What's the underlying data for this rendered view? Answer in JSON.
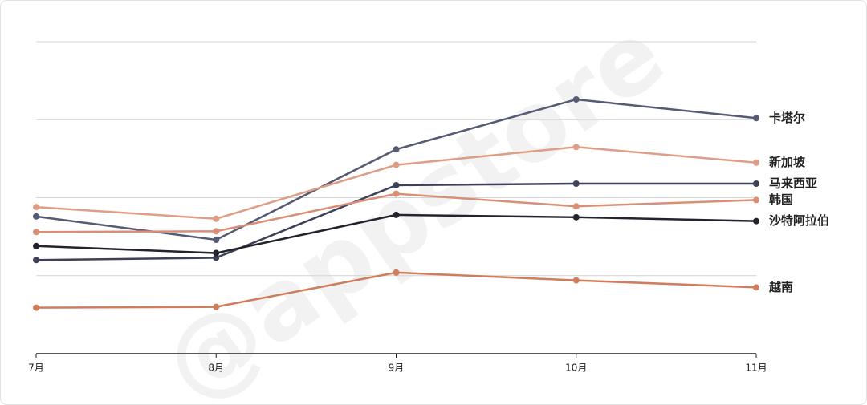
{
  "chart_data": {
    "type": "line",
    "watermark": "@appstore",
    "categories": [
      "7月",
      "8月",
      "9月",
      "10月",
      "11月"
    ],
    "series": [
      {
        "name": "卡塔尔",
        "color": "#565a72",
        "values": [
          1.76,
          1.46,
          2.62,
          3.26,
          3.02
        ]
      },
      {
        "name": "新加坡",
        "color": "#dd9e85",
        "values": [
          1.88,
          1.73,
          2.42,
          2.65,
          2.45
        ]
      },
      {
        "name": "马来西亚",
        "color": "#3e4156",
        "values": [
          1.2,
          1.23,
          2.16,
          2.18,
          2.18
        ]
      },
      {
        "name": "韩国",
        "color": "#d98f76",
        "values": [
          1.56,
          1.57,
          2.05,
          1.89,
          1.97
        ]
      },
      {
        "name": "沙特阿拉伯",
        "color": "#23232e",
        "values": [
          1.38,
          1.29,
          1.78,
          1.75,
          1.7
        ]
      },
      {
        "name": "越南",
        "color": "#d07d5c",
        "values": [
          0.59,
          0.6,
          1.04,
          0.94,
          0.85
        ]
      }
    ],
    "ylim": [
      0,
      4
    ],
    "yticks": [
      1,
      2,
      3,
      4
    ],
    "ytick_labels": false,
    "grid": true
  }
}
